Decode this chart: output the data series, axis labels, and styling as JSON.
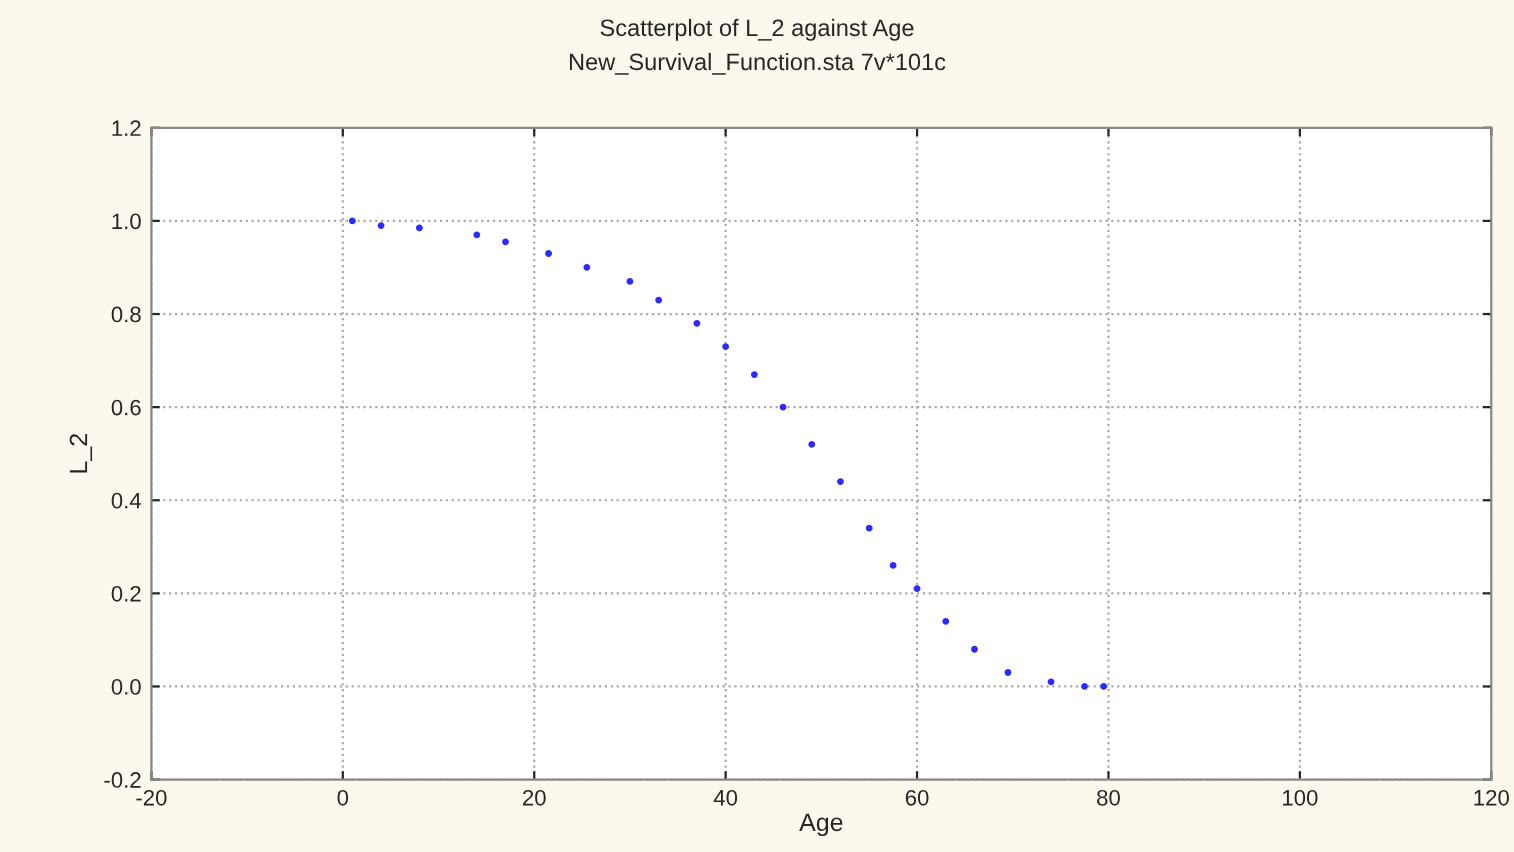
{
  "chart_data": {
    "type": "scatter",
    "title": "Scatterplot of L_2 against Age",
    "subtitle": "New_Survival_Function.sta 7v*101c",
    "xlabel": "Age",
    "ylabel": "L_2",
    "series": [
      {
        "color": "#2b2bff",
        "x": [
          1,
          4,
          8,
          14,
          17,
          21.5,
          25.5,
          30,
          33,
          37,
          40,
          43,
          46,
          49,
          52,
          55,
          57.5,
          60,
          63,
          66,
          69.5,
          74,
          77.5,
          79.5
        ],
        "values": [
          1.0,
          0.99,
          0.985,
          0.97,
          0.955,
          0.93,
          0.9,
          0.87,
          0.83,
          0.78,
          0.73,
          0.67,
          0.6,
          0.52,
          0.44,
          0.34,
          0.26,
          0.21,
          0.14,
          0.08,
          0.03,
          0.01,
          0.0,
          0.0
        ]
      }
    ],
    "xlim": [
      -20,
      120
    ],
    "xticks": [
      -20,
      0,
      20,
      40,
      60,
      80,
      100,
      120
    ],
    "ylim": [
      -0.2,
      1.2
    ],
    "yticks": [
      {
        "value": -0.2,
        "label": "-0.2"
      },
      {
        "value": 0,
        "label": "0.0"
      },
      {
        "value": 0.2,
        "label": "0.2"
      },
      {
        "value": 0.4,
        "label": "0.4"
      },
      {
        "value": 0.6,
        "label": "0.6"
      },
      {
        "value": 0.8,
        "label": "0.8"
      },
      {
        "value": 1.0,
        "label": "1.0"
      },
      {
        "value": 1.2,
        "label": "1.2"
      }
    ],
    "grid": true,
    "marker": "circle"
  }
}
